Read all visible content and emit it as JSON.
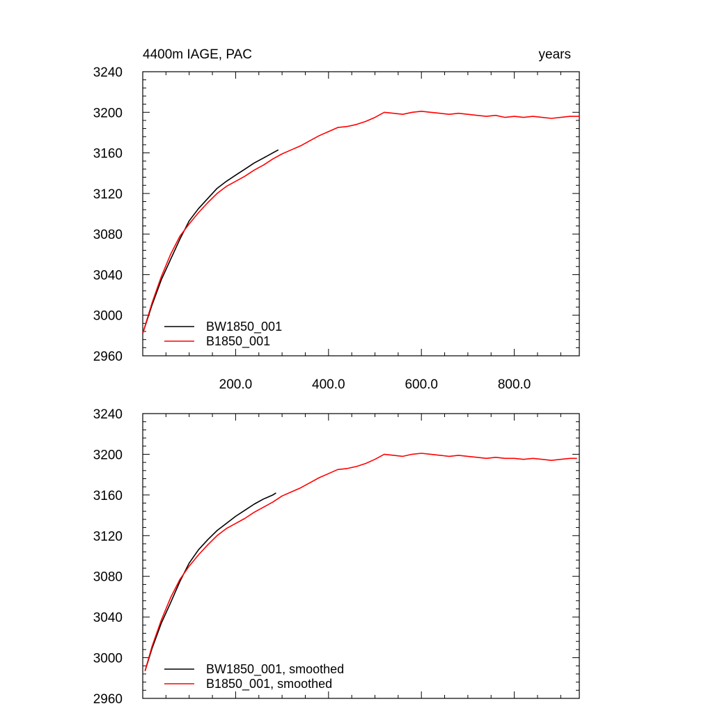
{
  "chart_data": [
    {
      "type": "line",
      "title_left": "4400m IAGE, PAC",
      "title_right": "years",
      "xlim": [
        0,
        940
      ],
      "ylim": [
        2960,
        3240
      ],
      "xticks": [
        200,
        400,
        600,
        800
      ],
      "xtick_labels": [
        "200.0",
        "400.0",
        "600.0",
        "800.0"
      ],
      "yticks": [
        2960,
        3000,
        3040,
        3080,
        3120,
        3160,
        3200,
        3240
      ],
      "ytick_labels": [
        "2960",
        "3000",
        "3040",
        "3080",
        "3120",
        "3160",
        "3200",
        "3240"
      ],
      "legend_position": "bottom-left",
      "series": [
        {
          "name": "BW1850_001",
          "color": "#000000",
          "x": [
            0,
            20,
            40,
            60,
            80,
            100,
            120,
            140,
            160,
            180,
            200,
            220,
            240,
            260,
            280,
            292
          ],
          "y": [
            2982,
            3010,
            3035,
            3055,
            3075,
            3093,
            3105,
            3115,
            3125,
            3132,
            3138,
            3144,
            3150,
            3155,
            3160,
            3163
          ]
        },
        {
          "name": "B1850_001",
          "color": "#ff0000",
          "x": [
            0,
            20,
            40,
            60,
            80,
            100,
            120,
            140,
            160,
            180,
            200,
            220,
            240,
            260,
            280,
            300,
            320,
            340,
            360,
            380,
            400,
            420,
            440,
            460,
            480,
            500,
            520,
            540,
            560,
            580,
            600,
            620,
            640,
            660,
            680,
            700,
            720,
            740,
            760,
            780,
            800,
            820,
            840,
            860,
            880,
            900,
            920,
            940
          ],
          "y": [
            2982,
            3012,
            3038,
            3060,
            3078,
            3090,
            3101,
            3111,
            3120,
            3127,
            3132,
            3137,
            3143,
            3148,
            3154,
            3159,
            3163,
            3167,
            3172,
            3177,
            3181,
            3185,
            3186,
            3188,
            3191,
            3195,
            3200,
            3199,
            3198,
            3200,
            3201,
            3200,
            3199,
            3198,
            3199,
            3198,
            3197,
            3196,
            3197,
            3195,
            3196,
            3195,
            3196,
            3195,
            3194,
            3195,
            3196,
            3196
          ]
        }
      ]
    },
    {
      "type": "line",
      "xlim": [
        0,
        940
      ],
      "ylim": [
        2960,
        3240
      ],
      "xticks": [
        200,
        400,
        600,
        800
      ],
      "yticks": [
        2960,
        3000,
        3040,
        3080,
        3120,
        3160,
        3200,
        3240
      ],
      "ytick_labels": [
        "2960",
        "3000",
        "3040",
        "3080",
        "3120",
        "3160",
        "3200",
        "3240"
      ],
      "legend_position": "bottom-left",
      "series": [
        {
          "name": "BW1850_001, smoothed",
          "color": "#000000",
          "x": [
            5,
            20,
            40,
            60,
            80,
            100,
            120,
            140,
            160,
            180,
            200,
            220,
            240,
            260,
            280,
            287
          ],
          "y": [
            2987,
            3009,
            3034,
            3054,
            3075,
            3093,
            3106,
            3116,
            3125,
            3132,
            3139,
            3145,
            3151,
            3156,
            3160,
            3162
          ]
        },
        {
          "name": "B1850_001, smoothed",
          "color": "#ff0000",
          "x": [
            5,
            20,
            40,
            60,
            80,
            100,
            120,
            140,
            160,
            180,
            200,
            220,
            240,
            260,
            280,
            300,
            320,
            340,
            360,
            380,
            400,
            420,
            440,
            460,
            480,
            500,
            520,
            540,
            560,
            580,
            600,
            620,
            640,
            660,
            680,
            700,
            720,
            740,
            760,
            780,
            800,
            820,
            840,
            860,
            880,
            900,
            920,
            935
          ],
          "y": [
            2987,
            3011,
            3037,
            3059,
            3077,
            3090,
            3101,
            3111,
            3120,
            3127,
            3132,
            3137,
            3143,
            3148,
            3153,
            3159,
            3163,
            3167,
            3172,
            3177,
            3181,
            3185,
            3186,
            3188,
            3191,
            3195,
            3200,
            3199,
            3198,
            3200,
            3201,
            3200,
            3199,
            3198,
            3199,
            3198,
            3197,
            3196,
            3197,
            3196,
            3196,
            3195,
            3196,
            3195,
            3194,
            3195,
            3196,
            3196
          ]
        }
      ]
    }
  ]
}
